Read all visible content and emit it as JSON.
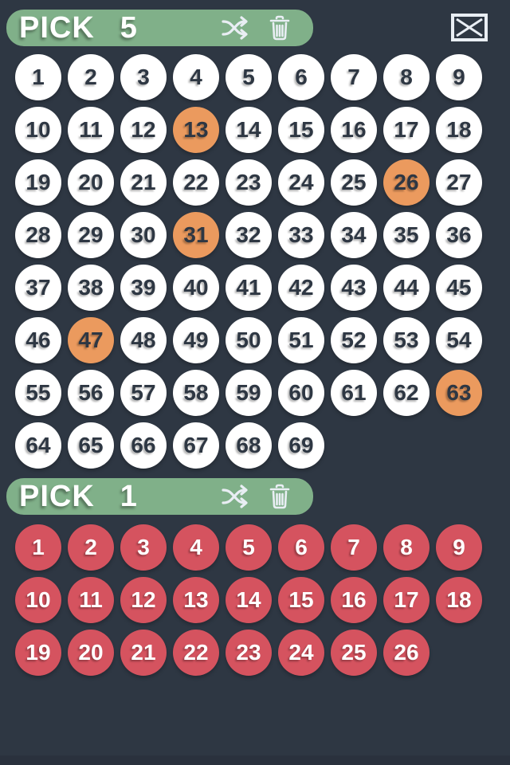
{
  "app": {
    "background_color": "#2e3743",
    "bottom_bar_color": "#2a313d"
  },
  "colors": {
    "header_green": "#80b089",
    "ball_white": "#ffffff",
    "ball_selected_orange": "#eb9a5e",
    "ball_red": "#d5535f",
    "ball_text_dark": "#2e3743",
    "ball_text_light": "#ffffff",
    "icon_color": "#e9eef4"
  },
  "close_button": {
    "icon": "close-x-icon"
  },
  "sections": [
    {
      "name": "main-numbers",
      "label": "PICK",
      "pick_count": "5",
      "total_balls": 69,
      "columns": 9,
      "selected_numbers": [
        13,
        26,
        31,
        47,
        63
      ],
      "ball_style": "white",
      "tools": [
        "shuffle-icon",
        "trash-icon"
      ]
    },
    {
      "name": "bonus-numbers",
      "label": "PICK",
      "pick_count": "1",
      "total_balls": 26,
      "columns": 9,
      "selected_numbers": [],
      "ball_style": "red",
      "tools": [
        "shuffle-icon",
        "trash-icon"
      ]
    }
  ]
}
